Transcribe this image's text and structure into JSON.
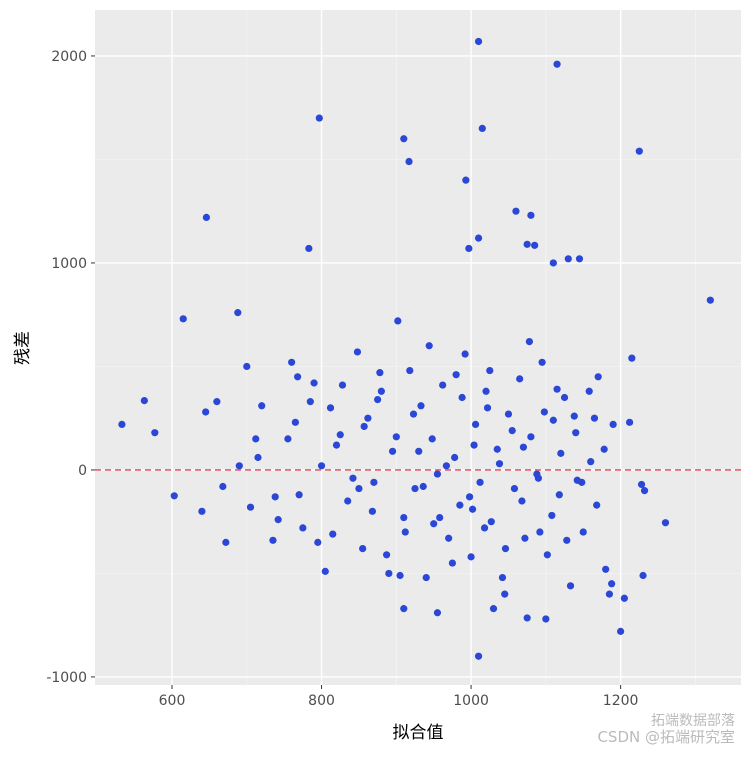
{
  "chart_data": {
    "type": "scatter",
    "xlabel": "拟合值",
    "ylabel": "残差",
    "xlim": [
      497,
      1361
    ],
    "ylim": [
      -1039,
      2222
    ],
    "xticks": [
      600,
      800,
      1000,
      1200
    ],
    "yticks": [
      -1000,
      0,
      1000,
      2000
    ],
    "x_minor_ticks": [
      700,
      900,
      1100,
      1300
    ],
    "y_minor_ticks": [
      -500,
      500,
      1500
    ],
    "grid": true,
    "hline": 0,
    "hline_color": "#e0455a",
    "color": "#2a47d6",
    "series": [
      {
        "name": "残差",
        "x": [
          1010,
          1115,
          797,
          910,
          1015,
          1225,
          917,
          993,
          646,
          1060,
          1080,
          783,
          997,
          1075,
          1085,
          1010,
          1130,
          1145,
          1110,
          1320,
          615,
          688,
          533,
          563,
          577,
          603,
          1010,
          1200,
          1260,
          1230,
          1100,
          1075,
          955,
          1030,
          910,
          640,
          660,
          672,
          700,
          712,
          735,
          760,
          768,
          775,
          790,
          805,
          812,
          820,
          835,
          848,
          855,
          862,
          870,
          880,
          887,
          895,
          902,
          910,
          918,
          925,
          933,
          940,
          948,
          955,
          962,
          970,
          978,
          985,
          992,
          1000,
          1006,
          1012,
          1020,
          1027,
          1035,
          1042,
          1050,
          1058,
          1065,
          1072,
          1080,
          1088,
          1095,
          1102,
          1110,
          1118,
          1125,
          1133,
          1140,
          1150,
          1160,
          1170,
          1180,
          1190,
          1205,
          1215,
          1232,
          645,
          668,
          690,
          705,
          720,
          742,
          755,
          770,
          785,
          800,
          815,
          828,
          842,
          857,
          868,
          878,
          890,
          900,
          912,
          923,
          936,
          944,
          958,
          967,
          975,
          988,
          998,
          1004,
          1018,
          1025,
          1038,
          1046,
          1055,
          1068,
          1078,
          1090,
          1098,
          1108,
          1120,
          1128,
          1138,
          1148,
          1158,
          1168,
          1178,
          1188,
          1212,
          1228,
          715,
          738,
          765,
          795,
          825,
          850,
          875,
          905,
          930,
          950,
          980,
          1002,
          1022,
          1045,
          1070,
          1092,
          1115,
          1142,
          1165,
          1185
        ],
        "values": [
          2070,
          1960,
          1700,
          1600,
          1650,
          1540,
          1490,
          1400,
          1220,
          1250,
          1230,
          1070,
          1070,
          1090,
          1085,
          1120,
          1020,
          1020,
          1000,
          820,
          730,
          760,
          220,
          335,
          180,
          -125,
          -900,
          -780,
          -255,
          -510,
          -720,
          -715,
          -690,
          -670,
          -670,
          -200,
          330,
          -350,
          500,
          150,
          -340,
          520,
          450,
          -280,
          420,
          -490,
          300,
          120,
          -150,
          570,
          -380,
          250,
          -60,
          380,
          -410,
          90,
          720,
          -230,
          480,
          -90,
          310,
          -520,
          150,
          -20,
          410,
          -330,
          60,
          -170,
          560,
          -420,
          220,
          -60,
          380,
          -250,
          100,
          -520,
          270,
          -90,
          440,
          -330,
          160,
          -20,
          520,
          -410,
          240,
          -120,
          350,
          -560,
          180,
          -300,
          40,
          450,
          -480,
          220,
          -620,
          540,
          -100,
          280,
          -80,
          20,
          -180,
          310,
          -240,
          150,
          -120,
          330,
          20,
          -310,
          410,
          -40,
          210,
          -200,
          470,
          -500,
          160,
          -300,
          270,
          -80,
          600,
          -230,
          20,
          -450,
          350,
          -130,
          120,
          -280,
          480,
          30,
          -380,
          190,
          -150,
          620,
          -40,
          280,
          -220,
          80,
          -340,
          260,
          -60,
          380,
          -170,
          100,
          -550,
          230,
          -70,
          60,
          -130,
          230,
          -350,
          170,
          -90,
          340,
          -510,
          90,
          -260,
          460,
          -190,
          300,
          -600,
          110,
          -300,
          390,
          -50,
          250,
          -600
        ]
      }
    ],
    "annotations": [
      "拓端数据部落",
      "CSDN @拓端研究室"
    ]
  }
}
